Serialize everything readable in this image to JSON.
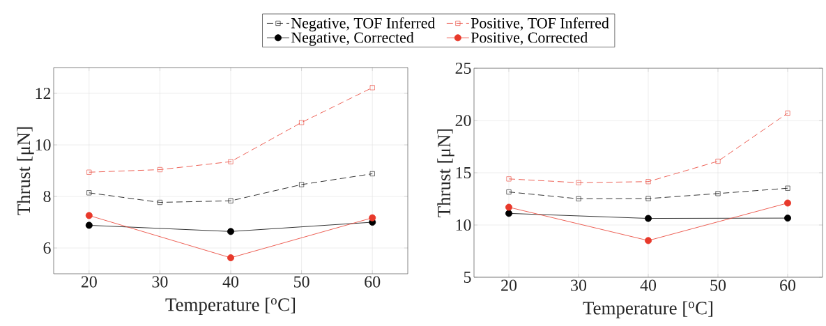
{
  "chart_data": [
    {
      "type": "line",
      "xlabel": "Temperature [$^{o}$C]",
      "ylabel": "Thrust [μN]",
      "xlim": [
        15,
        65
      ],
      "ylim": [
        5,
        13
      ],
      "xticks": [
        20,
        30,
        40,
        50,
        60
      ],
      "yticks": [
        6,
        8,
        10,
        12
      ],
      "grid": true,
      "legend": "top",
      "series": [
        {
          "name": "Negative, TOF Inferred",
          "color": "#000000",
          "marker": "square",
          "line_style": "dashed",
          "x": [
            20,
            30,
            40,
            50,
            60
          ],
          "values": [
            8.14,
            7.77,
            7.83,
            8.46,
            8.88
          ]
        },
        {
          "name": "Positive, TOF Inferred",
          "color": "#e8392b",
          "marker": "square",
          "line_style": "dashed",
          "x": [
            20,
            30,
            40,
            50,
            60
          ],
          "values": [
            8.94,
            9.04,
            9.35,
            10.87,
            12.22
          ]
        },
        {
          "name": "Negative, Corrected",
          "color": "#000000",
          "marker": "circle",
          "line_style": "solid",
          "x": [
            20,
            40,
            60
          ],
          "values": [
            6.88,
            6.64,
            7.0
          ]
        },
        {
          "name": "Positive, Corrected",
          "color": "#e8392b",
          "marker": "circle",
          "line_style": "solid",
          "x": [
            20,
            40,
            60
          ],
          "values": [
            7.26,
            5.62,
            7.17
          ]
        }
      ]
    },
    {
      "type": "line",
      "xlabel": "Temperature [$^{o}$C]",
      "ylabel": "Thrust [μN]",
      "xlim": [
        15,
        65
      ],
      "ylim": [
        5,
        25
      ],
      "xticks": [
        20,
        30,
        40,
        50,
        60
      ],
      "yticks": [
        5,
        10,
        15,
        20,
        25
      ],
      "grid": true,
      "series": [
        {
          "color": "#000000",
          "marker": "square",
          "line_style": "dashed",
          "x": [
            20,
            30,
            40,
            50,
            60
          ],
          "values": [
            13.16,
            12.51,
            12.53,
            13.01,
            13.52
          ]
        },
        {
          "color": "#e8392b",
          "marker": "square",
          "line_style": "dashed",
          "x": [
            20,
            30,
            40,
            50,
            60
          ],
          "values": [
            14.41,
            14.05,
            14.15,
            16.1,
            20.71
          ]
        },
        {
          "color": "#000000",
          "marker": "circle",
          "line_style": "solid",
          "x": [
            20,
            40,
            60
          ],
          "values": [
            11.11,
            10.63,
            10.66
          ]
        },
        {
          "color": "#e8392b",
          "marker": "circle",
          "line_style": "solid",
          "x": [
            20,
            40,
            60
          ],
          "values": [
            11.7,
            8.51,
            12.1
          ]
        }
      ]
    }
  ]
}
